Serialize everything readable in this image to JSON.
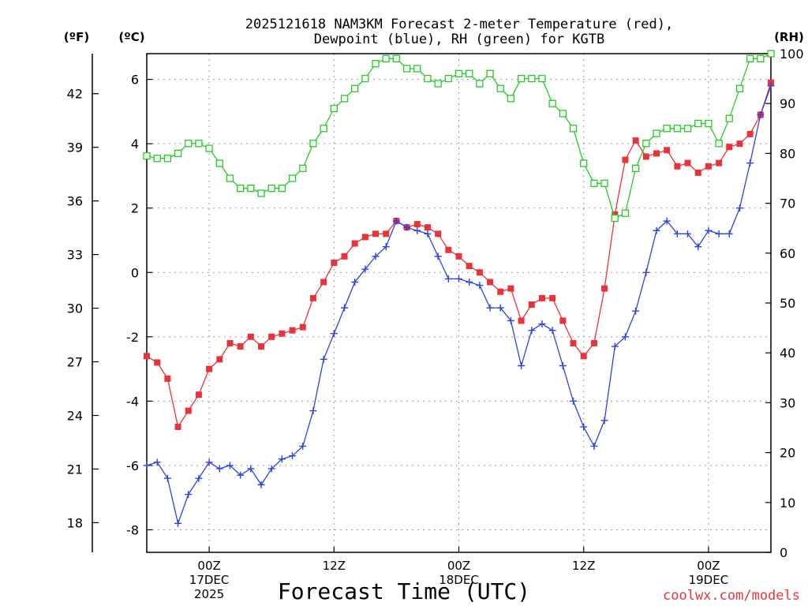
{
  "chart_data": {
    "type": "line",
    "title_lines": [
      "2025121618 NAM3KM Forecast 2-meter Temperature (red),",
      "Dewpoint (blue), RH (green) for KGTB"
    ],
    "xlabel": "Forecast Time (UTC)",
    "credit": "coolwx.com/models",
    "units": {
      "fahrenheit": "(ºF)",
      "celsius": "(ºC)",
      "rh": "(RH)"
    },
    "x_hours": [
      0,
      1,
      2,
      3,
      4,
      5,
      6,
      7,
      8,
      9,
      10,
      11,
      12,
      13,
      14,
      15,
      16,
      17,
      18,
      19,
      20,
      21,
      22,
      23,
      24,
      25,
      26,
      27,
      28,
      29,
      30,
      31,
      32,
      33,
      34,
      35,
      36,
      37,
      38,
      39,
      40,
      41,
      42,
      43,
      44,
      45,
      46,
      47,
      48,
      49,
      50,
      51,
      52,
      53,
      54,
      55,
      56,
      57,
      58,
      59,
      60
    ],
    "xlim": [
      0,
      60
    ],
    "celsius_ylim": [
      -8.7,
      6.8
    ],
    "rh_ylim": [
      0,
      100
    ],
    "x_ticks": [
      {
        "hour": 6,
        "lines": [
          "00Z",
          "17DEC",
          "2025"
        ]
      },
      {
        "hour": 18,
        "lines": [
          "12Z",
          "",
          ""
        ]
      },
      {
        "hour": 30,
        "lines": [
          "00Z",
          "18DEC",
          ""
        ]
      },
      {
        "hour": 42,
        "lines": [
          "12Z",
          "",
          ""
        ]
      },
      {
        "hour": 54,
        "lines": [
          "00Z",
          "19DEC",
          ""
        ]
      }
    ],
    "celsius_ticks": [
      "-8",
      "-6",
      "-4",
      "-2",
      "0",
      "2",
      "4",
      "6"
    ],
    "fahrenheit_ticks": [
      "18",
      "21",
      "24",
      "27",
      "30",
      "33",
      "36",
      "39",
      "42"
    ],
    "rh_ticks": [
      "0",
      "10",
      "20",
      "30",
      "40",
      "50",
      "60",
      "70",
      "80",
      "90",
      "100"
    ],
    "series": [
      {
        "name": "Temperature",
        "unit": "C",
        "color": "#e8333a",
        "marker": "filled-square",
        "values": [
          -2.6,
          -2.8,
          -3.3,
          -4.8,
          -4.3,
          -3.8,
          -3.0,
          -2.7,
          -2.2,
          -2.3,
          -2.0,
          -2.3,
          -2.0,
          -1.9,
          -1.8,
          -1.7,
          -0.8,
          -0.3,
          0.3,
          0.5,
          0.9,
          1.1,
          1.2,
          1.2,
          1.6,
          1.4,
          1.5,
          1.4,
          1.2,
          0.7,
          0.5,
          0.2,
          0.0,
          -0.3,
          -0.6,
          -0.5,
          -1.5,
          -1.0,
          -0.8,
          -0.8,
          -1.5,
          -2.2,
          -2.6,
          -2.2,
          -0.5,
          1.8,
          3.5,
          4.1,
          3.6,
          3.7,
          3.8,
          3.3,
          3.4,
          3.1,
          3.3,
          3.4,
          3.9,
          4.0,
          4.3,
          4.9,
          5.9
        ]
      },
      {
        "name": "Dewpoint",
        "unit": "C",
        "color": "#2b44e0",
        "marker": "plus",
        "values": [
          -6.0,
          -5.9,
          -6.4,
          -7.8,
          -6.9,
          -6.4,
          -5.9,
          -6.1,
          -6.0,
          -6.3,
          -6.1,
          -6.6,
          -6.1,
          -5.8,
          -5.7,
          -5.4,
          -4.3,
          -2.7,
          -1.9,
          -1.1,
          -0.3,
          0.1,
          0.5,
          0.8,
          1.6,
          1.4,
          1.3,
          1.2,
          0.5,
          -0.2,
          -0.2,
          -0.3,
          -0.4,
          -1.1,
          -1.1,
          -1.5,
          -2.9,
          -1.8,
          -1.6,
          -1.8,
          -2.9,
          -4.0,
          -4.8,
          -5.4,
          -4.6,
          -2.3,
          -2.0,
          -1.2,
          0.0,
          1.3,
          1.6,
          1.2,
          1.2,
          0.8,
          1.3,
          1.2,
          1.2,
          2.0,
          3.4,
          4.9,
          5.8
        ]
      },
      {
        "name": "RH",
        "unit": "%",
        "color": "#22cc22",
        "marker": "open-square",
        "values": [
          79.5,
          79,
          79,
          80,
          82,
          82,
          81,
          78,
          75,
          73,
          73,
          72,
          73,
          73,
          75,
          77,
          82,
          85,
          89,
          91,
          93,
          95,
          98,
          99,
          99,
          97,
          97,
          95,
          94,
          95,
          96,
          96,
          94,
          96,
          93,
          91,
          95,
          95,
          95,
          90,
          88,
          85,
          78,
          74,
          74,
          67,
          68,
          77,
          82,
          84,
          85,
          85,
          85,
          86,
          86,
          82,
          87,
          93,
          99,
          99,
          100
        ]
      }
    ]
  }
}
